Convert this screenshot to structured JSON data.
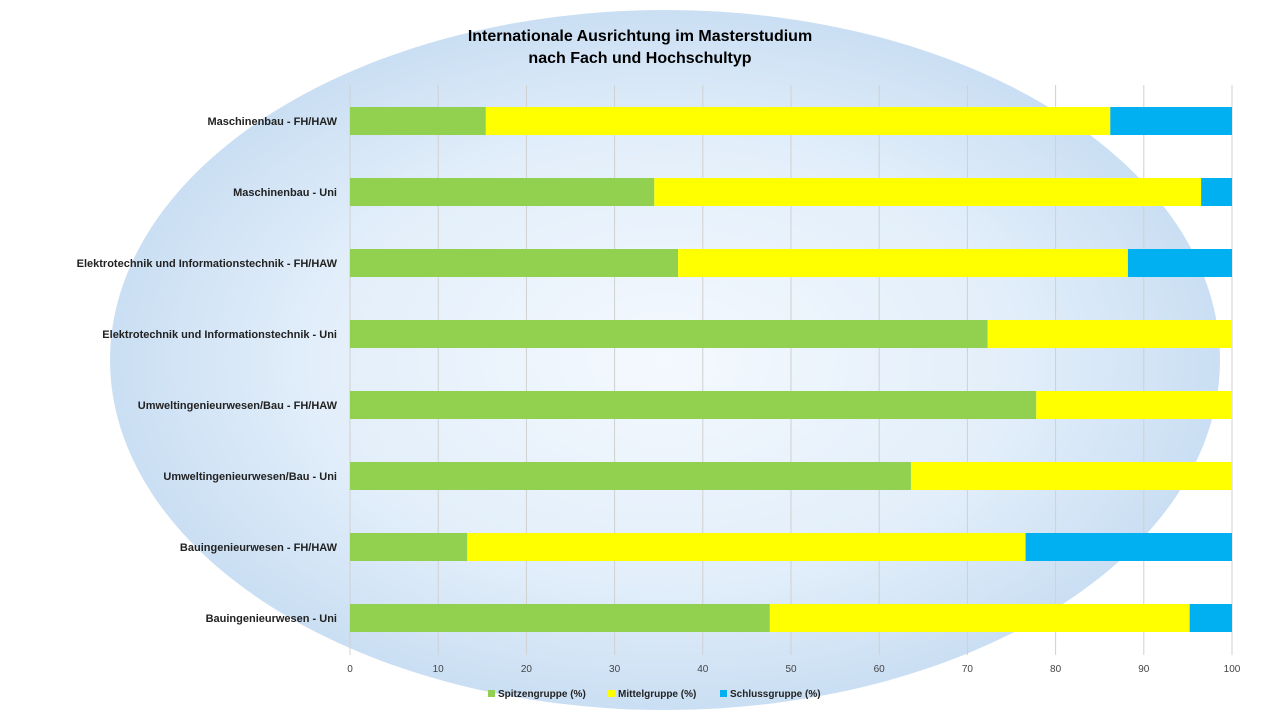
{
  "chart_data": {
    "type": "bar",
    "orientation": "horizontal",
    "stacked": true,
    "title": "Internationale Ausrichtung im Masterstudium",
    "subtitle": "nach Fach und Hochschultyp",
    "categories": [
      "Maschinenbau - FH/HAW",
      "Maschinenbau - Uni",
      "Elektrotechnik und Informationstechnik - FH/HAW",
      "Elektrotechnik und Informationstechnik - Uni",
      "Umweltingenieurwesen/Bau - FH/HAW",
      "Umweltingenieurwesen/Bau - Uni",
      "Bauingenieurwesen - FH/HAW",
      "Bauingenieurwesen - Uni"
    ],
    "series": [
      {
        "name": "Spitzengruppe (%)",
        "color": "#92d050",
        "values": [
          15.4,
          34.5,
          37.2,
          72.3,
          77.8,
          63.6,
          13.3,
          47.6
        ]
      },
      {
        "name": "Mittelgruppe (%)",
        "color": "#ffff00",
        "values": [
          70.8,
          62.0,
          51.0,
          27.7,
          22.2,
          36.4,
          63.3,
          47.6
        ]
      },
      {
        "name": "Schlussgruppe (%)",
        "color": "#00b0f0",
        "values": [
          13.8,
          3.5,
          11.8,
          0,
          0,
          0,
          23.4,
          4.8
        ]
      }
    ],
    "xlim": [
      0,
      100
    ],
    "xticks": [
      "0",
      "10",
      "20",
      "30",
      "40",
      "50",
      "60",
      "70",
      "80",
      "90",
      "100"
    ],
    "grid": true,
    "legend": "bottom"
  }
}
